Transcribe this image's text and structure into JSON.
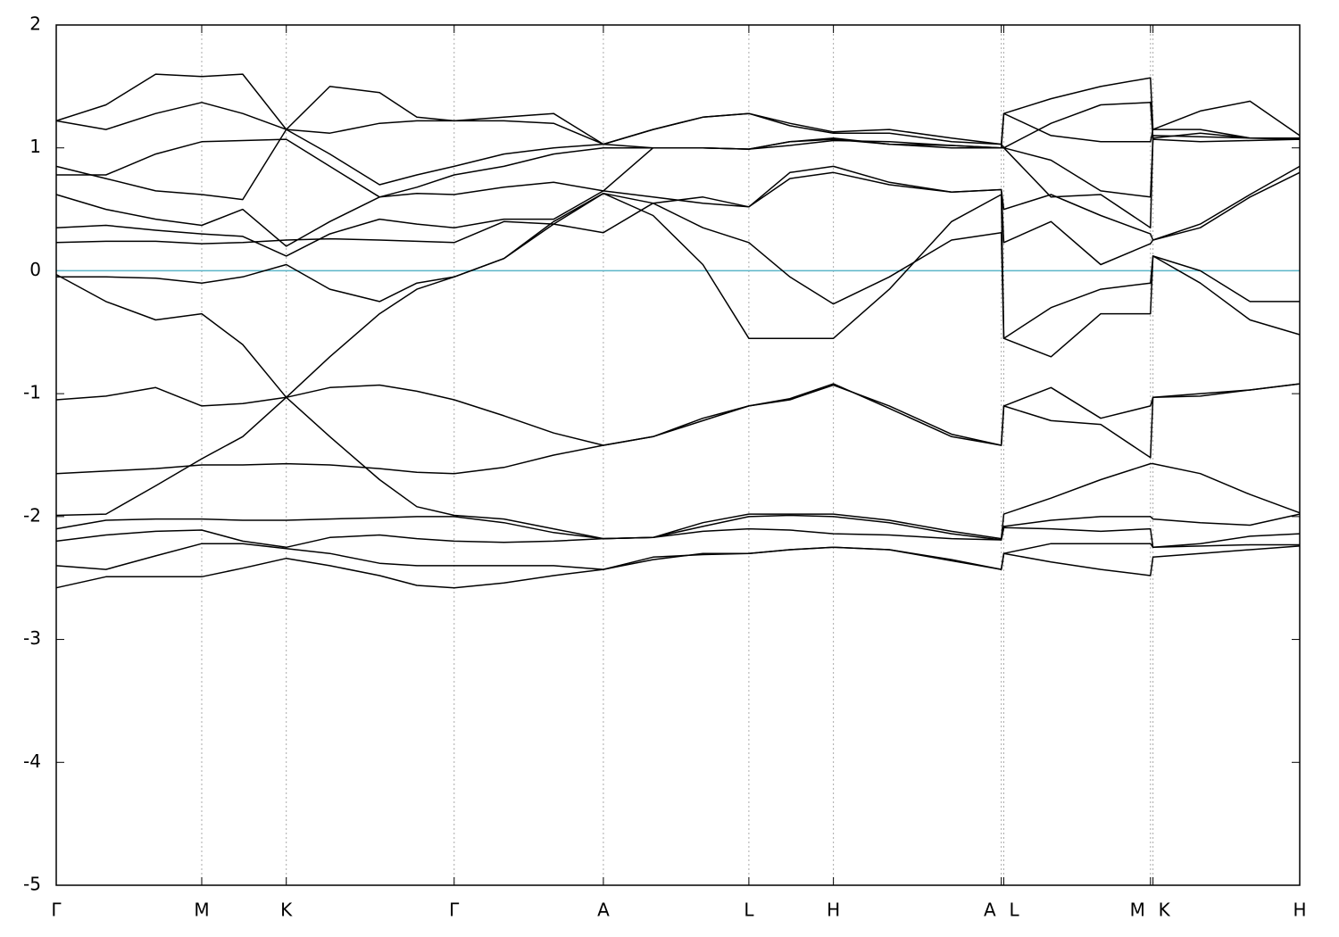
{
  "chart_data": {
    "type": "line",
    "color": "#000000",
    "grid": "x",
    "reference_line": {
      "value": 0,
      "color": "#5ab4c8"
    },
    "xlim": [
      0,
      1
    ],
    "ylim": [
      -5,
      2
    ],
    "yticks": [
      -5,
      -4,
      -3,
      -2,
      -1,
      0,
      1,
      2
    ],
    "xticks": [
      {
        "value": 0,
        "label": "Γ"
      },
      {
        "value": 0.117,
        "label": "M"
      },
      {
        "value": 0.185,
        "label": "K"
      },
      {
        "value": 0.32,
        "label": "Γ"
      },
      {
        "value": 0.44,
        "label": "A"
      },
      {
        "value": 0.557,
        "label": "L"
      },
      {
        "value": 0.625,
        "label": "H"
      },
      {
        "value": 0.76,
        "label": "A"
      },
      {
        "value": 0.762,
        "label": "L"
      },
      {
        "value": 0.88,
        "label": "M"
      },
      {
        "value": 0.882,
        "label": "K"
      },
      {
        "value": 1,
        "label": "H"
      }
    ],
    "x": [
      0,
      0.04,
      0.08,
      0.117,
      0.15,
      0.185,
      0.22,
      0.26,
      0.29,
      0.32,
      0.36,
      0.4,
      0.44,
      0.48,
      0.52,
      0.557,
      0.59,
      0.625,
      0.67,
      0.72,
      0.76,
      0.762,
      0.8,
      0.84,
      0.88,
      0.882,
      0.92,
      0.96,
      1.0
    ],
    "series": [
      {
        "values": [
          -2.58,
          -2.49,
          -2.49,
          -2.49,
          -2.42,
          -2.34,
          -2.4,
          -2.48,
          -2.56,
          -2.58,
          -2.54,
          -2.48,
          -2.43,
          -2.35,
          -2.3,
          -2.3,
          -2.27,
          -2.25,
          -2.27,
          -2.35,
          -2.43,
          -2.3,
          -2.37,
          -2.43,
          -2.48,
          -2.33,
          -2.3,
          -2.27,
          -2.24
        ]
      },
      {
        "values": [
          -2.4,
          -2.43,
          -2.32,
          -2.22,
          -2.22,
          -2.26,
          -2.3,
          -2.38,
          -2.4,
          -2.4,
          -2.4,
          -2.4,
          -2.43,
          -2.33,
          -2.31,
          -2.3,
          -2.27,
          -2.25,
          -2.27,
          -2.36,
          -2.43,
          -2.3,
          -2.22,
          -2.22,
          -2.22,
          -2.25,
          -2.24,
          -2.23,
          -2.23
        ]
      },
      {
        "values": [
          -2.2,
          -2.15,
          -2.12,
          -2.11,
          -2.2,
          -2.25,
          -2.17,
          -2.15,
          -2.18,
          -2.2,
          -2.21,
          -2.2,
          -2.18,
          -2.17,
          -2.12,
          -2.1,
          -2.11,
          -2.14,
          -2.15,
          -2.18,
          -2.19,
          -2.09,
          -2.1,
          -2.12,
          -2.1,
          -2.25,
          -2.22,
          -2.16,
          -2.14
        ]
      },
      {
        "values": [
          -2.1,
          -2.03,
          -2.02,
          -2.02,
          -2.03,
          -2.03,
          -2.02,
          -2.01,
          -2.0,
          -2.0,
          -2.05,
          -2.13,
          -2.18,
          -2.17,
          -2.08,
          -2.0,
          -1.99,
          -2.0,
          -2.05,
          -2.14,
          -2.19,
          -2.08,
          -2.03,
          -2.0,
          -2.0,
          -2.02,
          -2.05,
          -2.07,
          -1.98
        ]
      },
      {
        "values": [
          -1.99,
          -1.98,
          -1.75,
          -1.53,
          -1.35,
          -1.03,
          -1.35,
          -1.7,
          -1.92,
          -1.99,
          -2.02,
          -2.1,
          -2.18,
          -2.17,
          -2.05,
          -1.98,
          -1.98,
          -1.98,
          -2.03,
          -2.12,
          -2.18,
          -1.98,
          -1.85,
          -1.7,
          -1.57,
          -1.57,
          -1.65,
          -1.82,
          -1.97
        ]
      },
      {
        "values": [
          -1.65,
          -1.63,
          -1.61,
          -1.58,
          -1.58,
          -1.57,
          -1.58,
          -1.61,
          -1.64,
          -1.65,
          -1.6,
          -1.5,
          -1.42,
          -1.35,
          -1.2,
          -1.1,
          -1.05,
          -0.93,
          -1.1,
          -1.33,
          -1.42,
          -1.1,
          -0.95,
          -1.2,
          -1.1,
          -1.03,
          -1.02,
          -0.97,
          -0.92
        ]
      },
      {
        "values": [
          -1.05,
          -1.02,
          -0.95,
          -1.1,
          -1.08,
          -1.03,
          -0.95,
          -0.93,
          -0.98,
          -1.05,
          -1.18,
          -1.32,
          -1.42,
          -1.35,
          -1.22,
          -1.1,
          -1.04,
          -0.92,
          -1.12,
          -1.35,
          -1.42,
          -1.1,
          -1.22,
          -1.25,
          -1.52,
          -1.03,
          -1.0,
          -0.97,
          -0.92
        ]
      },
      {
        "values": [
          -0.03,
          -0.25,
          -0.4,
          -0.35,
          -0.6,
          -1.03,
          -0.7,
          -0.35,
          -0.15,
          -0.05,
          0.1,
          0.4,
          0.63,
          0.55,
          0.35,
          0.23,
          -0.05,
          -0.27,
          -0.05,
          0.25,
          0.31,
          -0.55,
          -0.7,
          -0.35,
          -0.35,
          0.12,
          -0.1,
          -0.4,
          -0.52
        ]
      },
      {
        "values": [
          -0.05,
          -0.05,
          -0.06,
          -0.1,
          -0.05,
          0.05,
          -0.15,
          -0.25,
          -0.1,
          -0.05,
          0.1,
          0.38,
          0.63,
          0.45,
          0.05,
          -0.55,
          -0.55,
          -0.55,
          -0.15,
          0.4,
          0.62,
          -0.55,
          -0.3,
          -0.15,
          -0.1,
          0.12,
          0.0,
          -0.25,
          -0.25
        ]
      },
      {
        "values": [
          0.23,
          0.24,
          0.24,
          0.22,
          0.23,
          0.25,
          0.26,
          0.25,
          0.24,
          0.23,
          0.4,
          0.38,
          0.31,
          0.55,
          0.6,
          0.52,
          0.75,
          0.8,
          0.7,
          0.64,
          0.66,
          0.23,
          0.4,
          0.05,
          0.22,
          0.25,
          0.35,
          0.6,
          0.8
        ]
      },
      {
        "values": [
          0.35,
          0.37,
          0.33,
          0.3,
          0.28,
          0.12,
          0.3,
          0.42,
          0.38,
          0.35,
          0.42,
          0.42,
          0.65,
          0.6,
          0.55,
          0.52,
          0.8,
          0.85,
          0.72,
          0.64,
          0.66,
          0.5,
          0.62,
          0.45,
          0.3,
          0.25,
          0.38,
          0.62,
          0.85
        ]
      },
      {
        "values": [
          0.62,
          0.5,
          0.42,
          0.37,
          0.5,
          0.2,
          0.4,
          0.6,
          0.63,
          0.62,
          0.68,
          0.72,
          0.65,
          1.0,
          1.0,
          0.99,
          1.05,
          1.07,
          1.03,
          1.0,
          1.0,
          1.0,
          0.6,
          0.62,
          0.35,
          1.1,
          1.09,
          1.08,
          1.08
        ]
      },
      {
        "values": [
          0.85,
          0.75,
          0.65,
          0.62,
          0.58,
          1.15,
          0.95,
          0.7,
          0.78,
          0.85,
          0.95,
          1.0,
          1.03,
          1.15,
          1.25,
          1.28,
          1.18,
          1.12,
          1.12,
          1.05,
          1.03,
          1.28,
          1.4,
          1.5,
          1.57,
          1.15,
          1.3,
          1.38,
          1.1
        ]
      },
      {
        "values": [
          1.22,
          1.35,
          1.6,
          1.58,
          1.6,
          1.15,
          1.5,
          1.45,
          1.25,
          1.22,
          1.25,
          1.28,
          1.03,
          1.15,
          1.25,
          1.28,
          1.2,
          1.13,
          1.15,
          1.08,
          1.03,
          1.0,
          1.2,
          1.35,
          1.37,
          1.08,
          1.12,
          1.08,
          1.08
        ]
      },
      {
        "values": [
          1.22,
          1.15,
          1.28,
          1.37,
          1.28,
          1.15,
          1.12,
          1.2,
          1.22,
          1.22,
          1.22,
          1.2,
          1.03,
          1.0,
          1.0,
          0.99,
          1.05,
          1.08,
          1.03,
          1.02,
          1.0,
          1.28,
          1.1,
          1.05,
          1.05,
          1.15,
          1.15,
          1.08,
          1.07
        ]
      },
      {
        "values": [
          0.78,
          0.78,
          0.95,
          1.05,
          1.06,
          1.07,
          0.85,
          0.6,
          0.68,
          0.78,
          0.85,
          0.95,
          1.0,
          1.0,
          1.0,
          0.99,
          1.02,
          1.06,
          1.05,
          1.02,
          1.0,
          1.0,
          0.9,
          0.65,
          0.6,
          1.07,
          1.05,
          1.06,
          1.07
        ]
      }
    ]
  }
}
